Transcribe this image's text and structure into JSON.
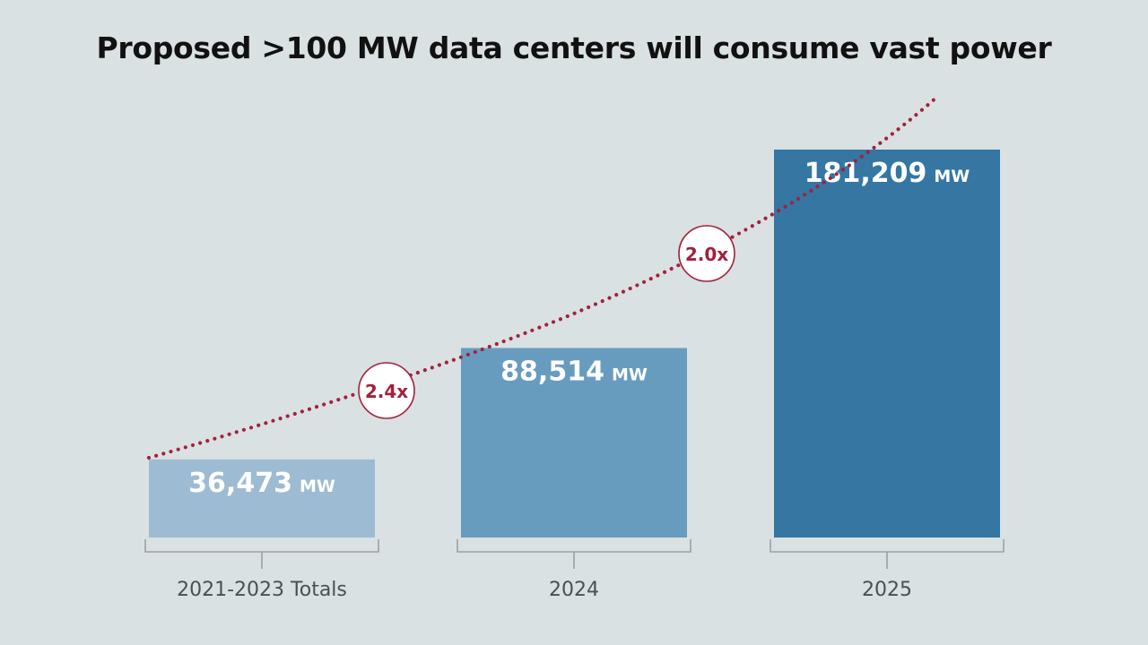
{
  "chart_data": {
    "type": "bar",
    "title": "Proposed >100 MW data centers will consume vast power",
    "categories": [
      "2021-2023 Totals",
      "2024",
      "2025"
    ],
    "values": [
      36473,
      88514,
      181209
    ],
    "value_labels": [
      "36,473",
      "88,514",
      "181,209"
    ],
    "unit": "MW",
    "bar_colors": [
      "#9dbbd3",
      "#679cbf",
      "#3576a3"
    ],
    "multipliers": [
      "2.4x",
      "2.0x"
    ],
    "trend_line": {
      "style": "dotted",
      "color": "#a3203a"
    },
    "xlabel": "",
    "ylabel": "",
    "ylim": [
      0,
      181209
    ],
    "grid": false
  }
}
